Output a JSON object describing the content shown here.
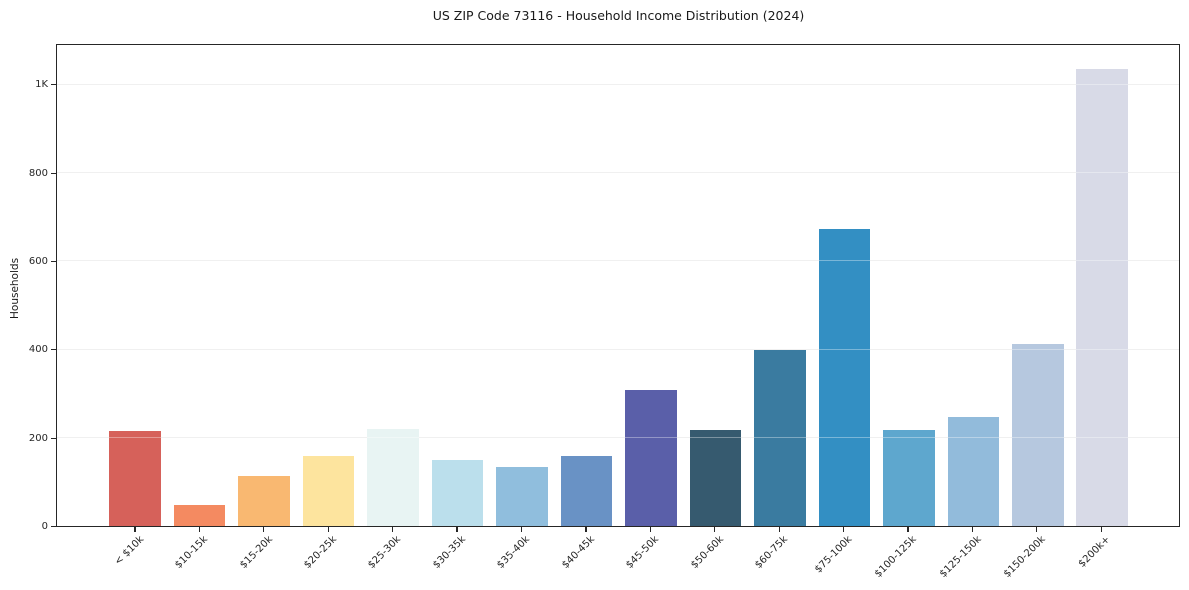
{
  "chart_data": {
    "type": "bar",
    "title": "US ZIP Code 73116 - Household Income Distribution (2024)",
    "xlabel": "",
    "ylabel": "Households",
    "categories": [
      "< $10k",
      "$10-15k",
      "$15-20k",
      "$20-25k",
      "$25-30k",
      "$30-35k",
      "$35-40k",
      "$40-45k",
      "$45-50k",
      "$50-60k",
      "$60-75k",
      "$75-100k",
      "$100-125k",
      "$125-150k",
      "$150-200k",
      "$200k+"
    ],
    "values": [
      215,
      47,
      113,
      158,
      220,
      150,
      133,
      159,
      308,
      218,
      400,
      672,
      217,
      246,
      413,
      1035
    ],
    "bar_colors": [
      "#d6615a",
      "#f48a61",
      "#f9b871",
      "#fde49e",
      "#e8f4f3",
      "#bbdfec",
      "#90bedd",
      "#6992c5",
      "#5a5fa9",
      "#365a6f",
      "#3a7ba0",
      "#338fc3",
      "#5ea7ce",
      "#92bbdb",
      "#b6c8df",
      "#d8dae7"
    ],
    "y_ticks": [
      {
        "label": "0",
        "value": 0
      },
      {
        "label": "200",
        "value": 200
      },
      {
        "label": "400",
        "value": 400
      },
      {
        "label": "600",
        "value": 600
      },
      {
        "label": "800",
        "value": 800
      },
      {
        "label": "1K",
        "value": 1000
      }
    ],
    "ylim": [
      0,
      1090
    ],
    "grid": "horizontal gridlines on",
    "legend": "none",
    "colors": {
      "axis": "#262626",
      "grid": "#e8e8e8",
      "background": "#ffffff"
    }
  }
}
